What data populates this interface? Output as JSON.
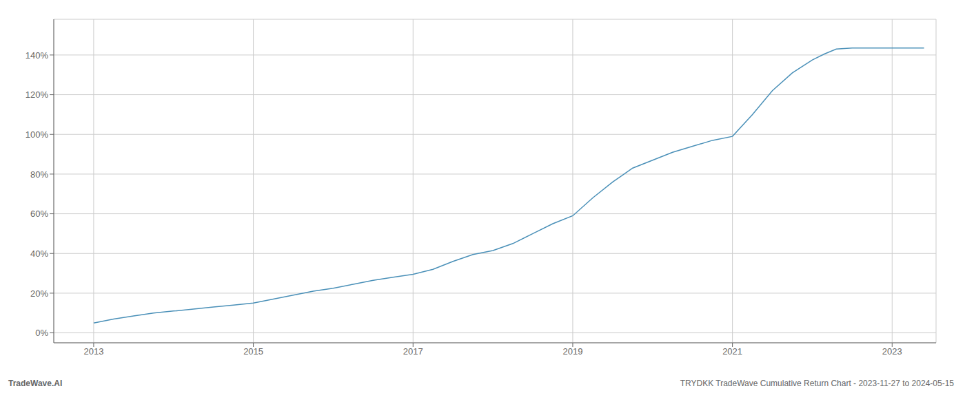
{
  "chart_data": {
    "type": "line",
    "title": "TRYDKK TradeWave Cumulative Return Chart - 2023-11-27 to 2024-05-15",
    "annotations": [
      {
        "text": "TradeWave.AI"
      }
    ],
    "color": "#4a90b8",
    "grid": true,
    "x": [
      2013.0,
      2013.25,
      2013.5,
      2013.75,
      2014.0,
      2014.25,
      2014.5,
      2014.75,
      2015.0,
      2015.25,
      2015.5,
      2015.75,
      2016.0,
      2016.25,
      2016.5,
      2016.75,
      2017.0,
      2017.25,
      2017.5,
      2017.75,
      2018.0,
      2018.25,
      2018.5,
      2018.75,
      2019.0,
      2019.25,
      2019.5,
      2019.75,
      2020.0,
      2020.25,
      2020.5,
      2020.75,
      2021.0,
      2021.25,
      2021.5,
      2021.75,
      2022.0,
      2022.15,
      2022.3,
      2022.5,
      2022.7,
      2022.9,
      2023.0,
      2023.2,
      2023.4
    ],
    "values": [
      5.0,
      7.0,
      8.5,
      10.0,
      11.0,
      12.0,
      13.0,
      14.0,
      15.0,
      17.0,
      19.0,
      21.0,
      22.5,
      24.5,
      26.5,
      28.0,
      29.5,
      32.0,
      36.0,
      39.5,
      41.5,
      45.0,
      50.0,
      55.0,
      59.0,
      68.0,
      76.0,
      83.0,
      87.0,
      91.0,
      94.0,
      97.0,
      99.0,
      110.0,
      122.0,
      131.0,
      137.5,
      140.5,
      143.0,
      143.5,
      143.5,
      143.5,
      143.5,
      143.5,
      143.5
    ],
    "xlim": [
      2012.5,
      2023.55
    ],
    "ylim": [
      -5,
      158
    ],
    "xticks": [
      2013,
      2015,
      2017,
      2019,
      2021,
      2023
    ],
    "yticks": [
      {
        "value": 0,
        "label": "0%"
      },
      {
        "value": 20,
        "label": "20%"
      },
      {
        "value": 40,
        "label": "40%"
      },
      {
        "value": 60,
        "label": "60%"
      },
      {
        "value": 80,
        "label": "80%"
      },
      {
        "value": 100,
        "label": "100%"
      },
      {
        "value": 120,
        "label": "120%"
      },
      {
        "value": 140,
        "label": "140%"
      }
    ]
  }
}
